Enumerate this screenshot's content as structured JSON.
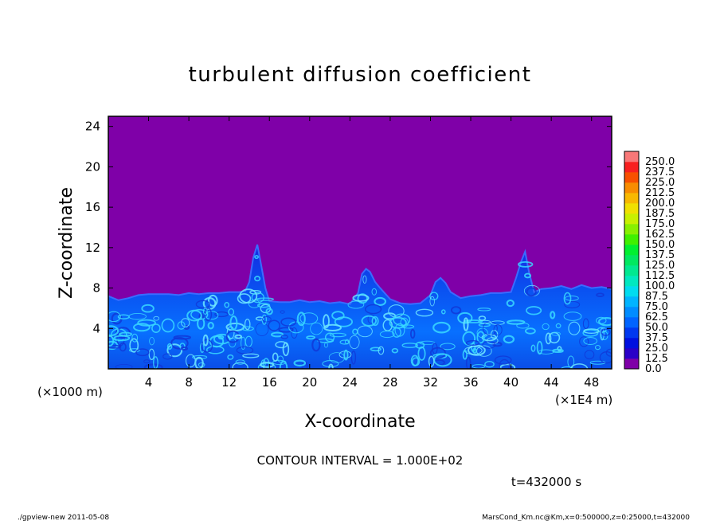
{
  "chart_data": {
    "type": "heatmap",
    "title": "turbulent diffusion coefficient",
    "xlabel": "X-coordinate",
    "ylabel": "Z-coordinate",
    "x_unit": "(×1E4 m)",
    "y_unit": "(×1000 m)",
    "xlim": [
      0,
      50
    ],
    "ylim": [
      0,
      25
    ],
    "x_ticks": [
      "4",
      "8",
      "12",
      "16",
      "20",
      "24",
      "28",
      "32",
      "36",
      "40",
      "44",
      "48"
    ],
    "y_ticks": [
      "4",
      "8",
      "12",
      "16",
      "20",
      "24"
    ],
    "colorbar": {
      "levels": [
        "0.0",
        "12.5",
        "25.0",
        "37.5",
        "50.0",
        "62.5",
        "75.0",
        "87.5",
        "100.0",
        "112.5",
        "125.0",
        "137.5",
        "150.0",
        "162.5",
        "175.0",
        "187.5",
        "200.0",
        "212.5",
        "225.0",
        "237.5",
        "250.0"
      ],
      "colors": [
        "#7f00a8",
        "#2a00c8",
        "#0010e0",
        "#0038f0",
        "#0064ff",
        "#008cff",
        "#00b4ff",
        "#00dcf0",
        "#00e8c0",
        "#00e890",
        "#00e860",
        "#00f030",
        "#40f000",
        "#88f000",
        "#c8f000",
        "#f0e000",
        "#f8b800",
        "#f88c00",
        "#f85000",
        "#f82020",
        "#f87878"
      ]
    },
    "boundary_layer_top": {
      "x": [
        0,
        1,
        2,
        3,
        4,
        5,
        6,
        7,
        8,
        9,
        10,
        11,
        12,
        13,
        13.6,
        14,
        14.4,
        14.8,
        15.2,
        15.6,
        16,
        17,
        18,
        19,
        20,
        21,
        22,
        23,
        24,
        24.8,
        25.2,
        25.6,
        26,
        26.5,
        27,
        28,
        29,
        30,
        31,
        32,
        32.5,
        33,
        33.5,
        34,
        35,
        36,
        37,
        38,
        39,
        40,
        40.5,
        41,
        41.4,
        41.8,
        42.3,
        43,
        44,
        45,
        46,
        47,
        48,
        49,
        50
      ],
      "y": [
        7.2,
        6.8,
        7.0,
        7.3,
        7.4,
        7.4,
        7.4,
        7.3,
        7.5,
        7.4,
        7.5,
        7.5,
        7.6,
        7.6,
        7.7,
        8.6,
        11.0,
        12.3,
        10.2,
        8.0,
        6.7,
        6.6,
        6.6,
        6.8,
        6.6,
        6.7,
        6.5,
        6.6,
        6.4,
        7.5,
        9.4,
        9.9,
        9.6,
        8.6,
        8.0,
        6.9,
        6.5,
        6.4,
        6.5,
        7.3,
        8.6,
        9.0,
        8.5,
        7.6,
        7.0,
        7.2,
        7.3,
        7.5,
        7.5,
        7.6,
        9.0,
        10.6,
        11.6,
        9.5,
        7.6,
        7.9,
        8.0,
        8.2,
        7.9,
        8.3,
        8.0,
        8.1,
        7.9
      ]
    }
  },
  "contour_interval": "CONTOUR INTERVAL = 1.000E+02",
  "time_label": "t=432000 s",
  "footer": {
    "left": "./gpview-new   2011-05-08",
    "right": "MarsCond_Km.nc@Km,x=0:500000,z=0:25000,t=432000"
  }
}
